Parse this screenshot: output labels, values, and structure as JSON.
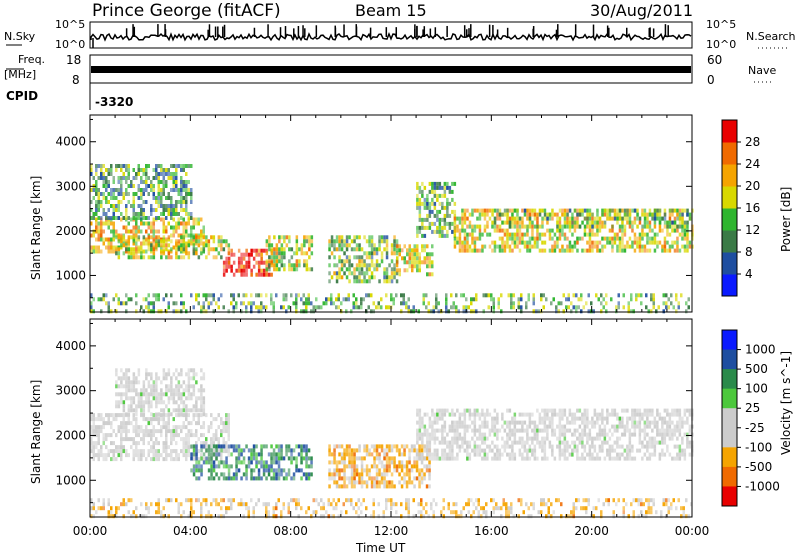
{
  "header": {
    "station": "Prince George (fitACF)",
    "beam": "Beam 15",
    "date": "30/Aug/2011"
  },
  "sky_panel": {
    "left_label": "N.Sky",
    "right_label": "N.Search",
    "y_ticks": [
      "10^5",
      "10^0"
    ],
    "right_ticks": [
      "10^5",
      "10^0"
    ]
  },
  "freq_panel": {
    "left_label_top": "Freq.",
    "left_label_unit": "[MHz]",
    "y_ticks": [
      "18",
      "8"
    ],
    "right_label": "Nave",
    "right_ticks": [
      "60",
      "0"
    ]
  },
  "cpid": {
    "label": "CPID",
    "value": "-3320"
  },
  "colors": {
    "power_scale": [
      "#0a1aff",
      "#1e4ea0",
      "#3a7a46",
      "#2fb52f",
      "#d8d800",
      "#f5a400",
      "#f06a00",
      "#e80000"
    ],
    "velocity_scale": [
      "#e80000",
      "#f06a00",
      "#f5a400",
      "#cccccc",
      "#cccccc",
      "#4cc83c",
      "#2a8a4a",
      "#1e4ea0",
      "#0a1aff"
    ]
  },
  "chart_data": [
    {
      "type": "heatmap",
      "name": "power",
      "ylabel": "Slant Range [km]",
      "xlabel": "",
      "x_ticks": [
        "00:00",
        "04:00",
        "08:00",
        "12:00",
        "16:00",
        "20:00",
        "00:00"
      ],
      "x_range_hours": [
        0,
        24
      ],
      "y_ticks": [
        1000,
        2000,
        3000,
        4000
      ],
      "ylim": [
        180,
        4600
      ],
      "colorbar": {
        "label": "Power [dB]",
        "ticks": [
          4,
          8,
          12,
          16,
          20,
          24,
          28
        ],
        "range": [
          0,
          32
        ]
      },
      "echo_regions": [
        {
          "t0": 0.0,
          "t1": 4.5,
          "r0": 1500,
          "r1": 2300,
          "level": 0.62
        },
        {
          "t0": 0.0,
          "t1": 4.0,
          "r0": 2300,
          "r1": 3500,
          "level": 0.35
        },
        {
          "t0": 1.0,
          "t1": 5.5,
          "r0": 1400,
          "r1": 1900,
          "level": 0.55
        },
        {
          "t0": 5.3,
          "t1": 7.2,
          "r0": 1000,
          "r1": 1600,
          "level": 0.95
        },
        {
          "t0": 7.0,
          "t1": 8.8,
          "r0": 1100,
          "r1": 1900,
          "level": 0.55
        },
        {
          "t0": 9.5,
          "t1": 12.2,
          "r0": 900,
          "r1": 1900,
          "level": 0.45
        },
        {
          "t0": 12.2,
          "t1": 13.6,
          "r0": 1000,
          "r1": 1700,
          "level": 0.6
        },
        {
          "t0": 13.0,
          "t1": 14.5,
          "r0": 1900,
          "r1": 3100,
          "level": 0.4
        },
        {
          "t0": 14.5,
          "t1": 24.0,
          "r0": 1600,
          "r1": 2500,
          "level": 0.6
        },
        {
          "t0": 16.0,
          "t1": 24.0,
          "r0": 2100,
          "r1": 2500,
          "level": 0.4
        },
        {
          "t0": 0.0,
          "t1": 24.0,
          "r0": 200,
          "r1": 600,
          "level": 0.4
        }
      ]
    },
    {
      "type": "heatmap",
      "name": "velocity",
      "ylabel": "Slant Range [km]",
      "xlabel": "Time UT",
      "x_ticks": [
        "00:00",
        "04:00",
        "08:00",
        "12:00",
        "16:00",
        "20:00",
        "00:00"
      ],
      "x_range_hours": [
        0,
        24
      ],
      "y_ticks": [
        1000,
        2000,
        3000,
        4000
      ],
      "ylim": [
        180,
        4600
      ],
      "colorbar": {
        "label": "Velocity [m s^-1]",
        "ticks": [
          1000,
          500,
          100,
          25,
          -25,
          -100,
          -500,
          -1000
        ]
      },
      "echo_regions": [
        {
          "t0": 0.0,
          "t1": 5.5,
          "r0": 1500,
          "r1": 2500,
          "level": 0.0
        },
        {
          "t0": 1.0,
          "t1": 4.5,
          "r0": 2500,
          "r1": 3500,
          "level": 0.05
        },
        {
          "t0": 4.0,
          "t1": 8.8,
          "r0": 1000,
          "r1": 1800,
          "level": 0.55
        },
        {
          "t0": 9.5,
          "t1": 13.5,
          "r0": 900,
          "r1": 1800,
          "level": -0.45
        },
        {
          "t0": 13.0,
          "t1": 24.0,
          "r0": 1500,
          "r1": 2600,
          "level": 0.0
        },
        {
          "t0": 0.0,
          "t1": 24.0,
          "r0": 200,
          "r1": 600,
          "level": -0.4
        }
      ]
    }
  ]
}
